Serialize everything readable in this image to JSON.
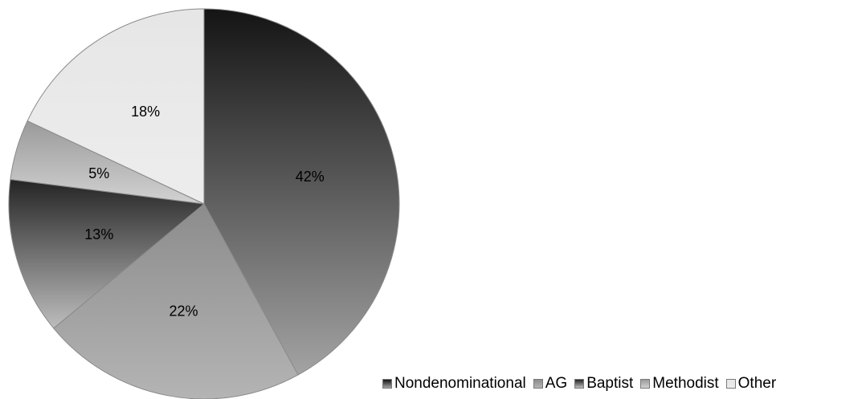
{
  "chart_data": {
    "type": "pie",
    "title": "",
    "categories": [
      "Nondenominational",
      "AG",
      "Baptist",
      "Methodist",
      "Other"
    ],
    "values": [
      42,
      22,
      13,
      5,
      18
    ],
    "labels": [
      "42%",
      "22%",
      "13%",
      "5%",
      "18%"
    ],
    "legend_position": "bottom-right",
    "start_angle_deg": 0,
    "direction": "clockwise",
    "colors": [
      {
        "dark": "#141414",
        "light": "#a3a3a3"
      },
      {
        "dark": "#8c8c8c",
        "light": "#b4b4b4"
      },
      {
        "dark": "#242424",
        "light": "#bdbdbd"
      },
      {
        "dark": "#9a9a9a",
        "light": "#d2d2d2"
      },
      {
        "dark": "#e6e6e6",
        "light": "#ededed"
      }
    ]
  }
}
